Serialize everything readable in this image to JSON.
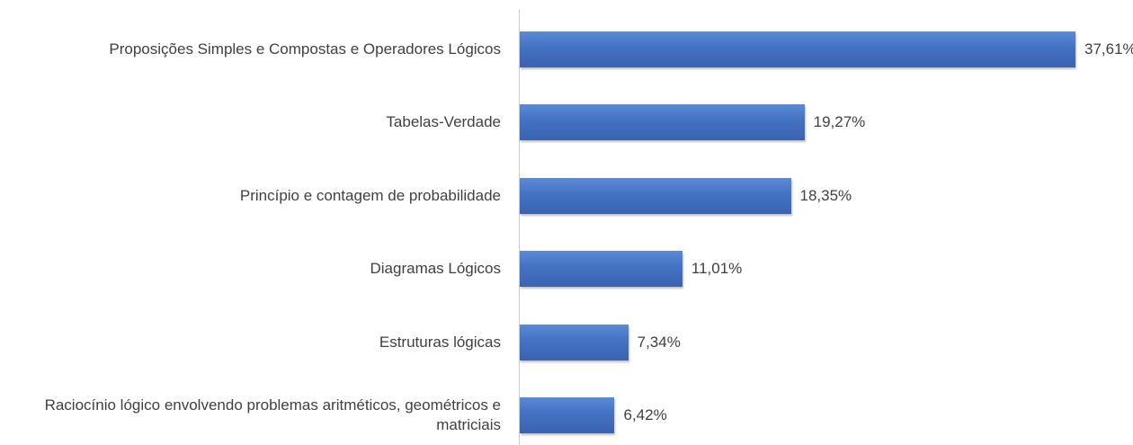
{
  "chart_data": {
    "type": "bar",
    "orientation": "horizontal",
    "categories": [
      "Proposições Simples e Compostas e Operadores Lógicos",
      "Tabelas-Verdade",
      "Princípio e contagem de probabilidade",
      "Diagramas Lógicos",
      "Estruturas lógicas",
      "Raciocínio lógico envolvendo problemas aritméticos, geométricos e matriciais"
    ],
    "values": [
      37.61,
      19.27,
      18.35,
      11.01,
      7.34,
      6.42
    ],
    "value_labels": [
      "37,61%",
      "19,27%",
      "18,35%",
      "11,01%",
      "7,34%",
      "6,42%"
    ],
    "color": "#4472c4"
  }
}
